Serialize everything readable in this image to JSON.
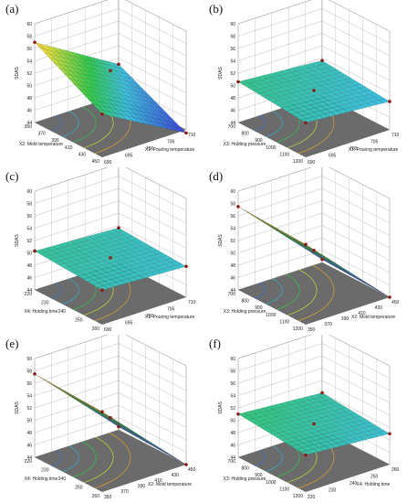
{
  "chart_data": [
    {
      "id": "a",
      "label": "(a)",
      "type": "surface3d",
      "zlabel": "SDAS",
      "zticks": [
        "44",
        "46",
        "48",
        "50",
        "52",
        "54",
        "56",
        "58",
        "60"
      ],
      "zlim": [
        44,
        60
      ],
      "xlabel": "X1: Pouring temperature",
      "xticks": [
        "690",
        "695",
        "700",
        "705",
        "710"
      ],
      "ylabel": "X2: Mold temperature",
      "yticks": [
        "350",
        "370",
        "390",
        "410",
        "430",
        "450"
      ],
      "corner_values": [
        57.0,
        51.0,
        43.5,
        49.0
      ],
      "center_point": 53.0
    },
    {
      "id": "b",
      "label": "(b)",
      "type": "surface3d",
      "zlabel": "SDAS",
      "zticks": [
        "44",
        "46",
        "48",
        "50",
        "52",
        "54",
        "56",
        "58",
        "60"
      ],
      "zlim": [
        44,
        60
      ],
      "xlabel": "X1: Pouring temperature",
      "xticks": [
        "690",
        "695",
        "700",
        "705",
        "710"
      ],
      "ylabel": "X3: Holding pressure",
      "yticks": [
        "700",
        "800",
        "900",
        "1000",
        "1100",
        "1200"
      ],
      "corner_values": [
        50.6,
        49.6,
        48.6,
        49.6
      ],
      "center_point": 49.8
    },
    {
      "id": "c",
      "label": "(c)",
      "type": "surface3d",
      "zlabel": "SDAS",
      "zticks": [
        "44",
        "46",
        "48",
        "50",
        "52",
        "54",
        "56",
        "58",
        "60"
      ],
      "zlim": [
        44,
        60
      ],
      "xlabel": "X1: Pouring temperature",
      "xticks": [
        "690",
        "695",
        "700",
        "705",
        "710"
      ],
      "ylabel": "X4: Holding time",
      "yticks": [
        "220",
        "230",
        "240",
        "250",
        "260"
      ],
      "corner_values": [
        50.3,
        49.6,
        49.0,
        49.6
      ],
      "center_point": 49.8
    },
    {
      "id": "d",
      "label": "(d)",
      "type": "surface3d",
      "zlabel": "SDAS",
      "zticks": [
        "44",
        "46",
        "48",
        "50",
        "52",
        "54",
        "56",
        "58",
        "60"
      ],
      "zlim": [
        44,
        60
      ],
      "xlabel": "X2: Mold temperature",
      "xticks": [
        "350",
        "370",
        "390",
        "410",
        "430",
        "450"
      ],
      "ylabel": "X3: Holding pressure",
      "yticks": [
        "700",
        "800",
        "900",
        "1000",
        "1100",
        "1200"
      ],
      "corner_values": [
        57.5,
        57.0,
        44.0,
        44.5
      ],
      "center_point": 51.0
    },
    {
      "id": "e",
      "label": "(e)",
      "type": "surface3d",
      "zlabel": "SDAS",
      "zticks": [
        "44",
        "46",
        "48",
        "50",
        "52",
        "54",
        "56",
        "58",
        "60"
      ],
      "zlim": [
        44,
        60
      ],
      "xlabel": "X2: Mold temperature",
      "xticks": [
        "350",
        "370",
        "390",
        "410",
        "430",
        "450"
      ],
      "ylabel": "X4: Holding time",
      "yticks": [
        "220",
        "230",
        "240",
        "250",
        "260"
      ],
      "corner_values": [
        57.5,
        57.0,
        44.0,
        44.5
      ],
      "center_point": 51.0
    },
    {
      "id": "f",
      "label": "(f)",
      "type": "surface3d",
      "zlabel": "SDAS",
      "zticks": [
        "44",
        "46",
        "48",
        "50",
        "52",
        "54",
        "56",
        "58",
        "60"
      ],
      "zlim": [
        44,
        60
      ],
      "xlabel": "X4: Holding time",
      "xticks": [
        "220",
        "230",
        "240",
        "250",
        "260"
      ],
      "ylabel": "X3: Holding pressure",
      "yticks": [
        "700",
        "800",
        "900",
        "1000",
        "1100",
        "1200"
      ],
      "corner_values": [
        51.0,
        50.0,
        49.0,
        50.0
      ],
      "center_point": 50.0
    }
  ],
  "colors": {
    "surface_high": "#d94a3a",
    "surface_mid": "#2fc84a",
    "surface_low": "#3a4ed8",
    "floor": "#6b6b6b",
    "point": "#8a1a12"
  }
}
